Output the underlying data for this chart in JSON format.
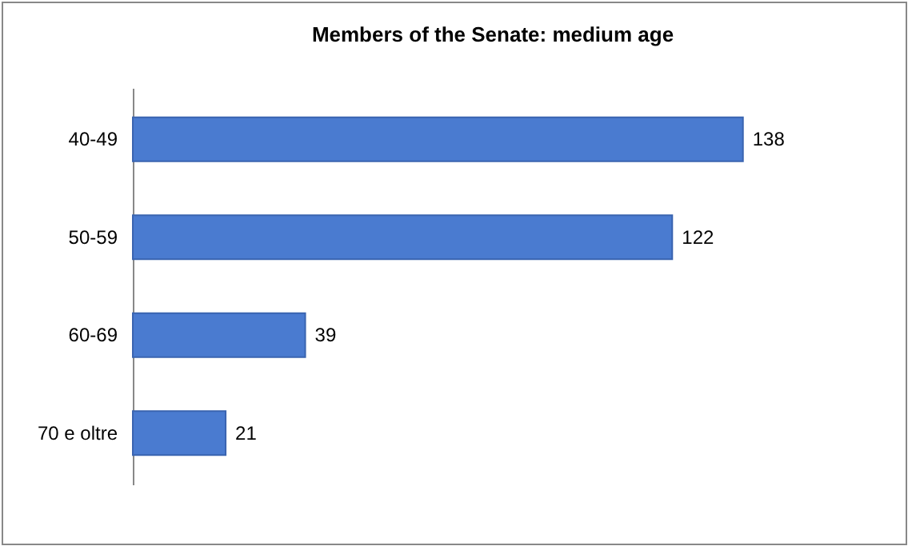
{
  "chart_data": {
    "type": "bar",
    "orientation": "horizontal",
    "title": "Members of the Senate: medium age",
    "categories": [
      "40-49",
      "50-59",
      "60-69",
      "70 e oltre"
    ],
    "values": [
      138,
      122,
      39,
      21
    ],
    "color": "#4a7bd0",
    "data_labels": true
  }
}
